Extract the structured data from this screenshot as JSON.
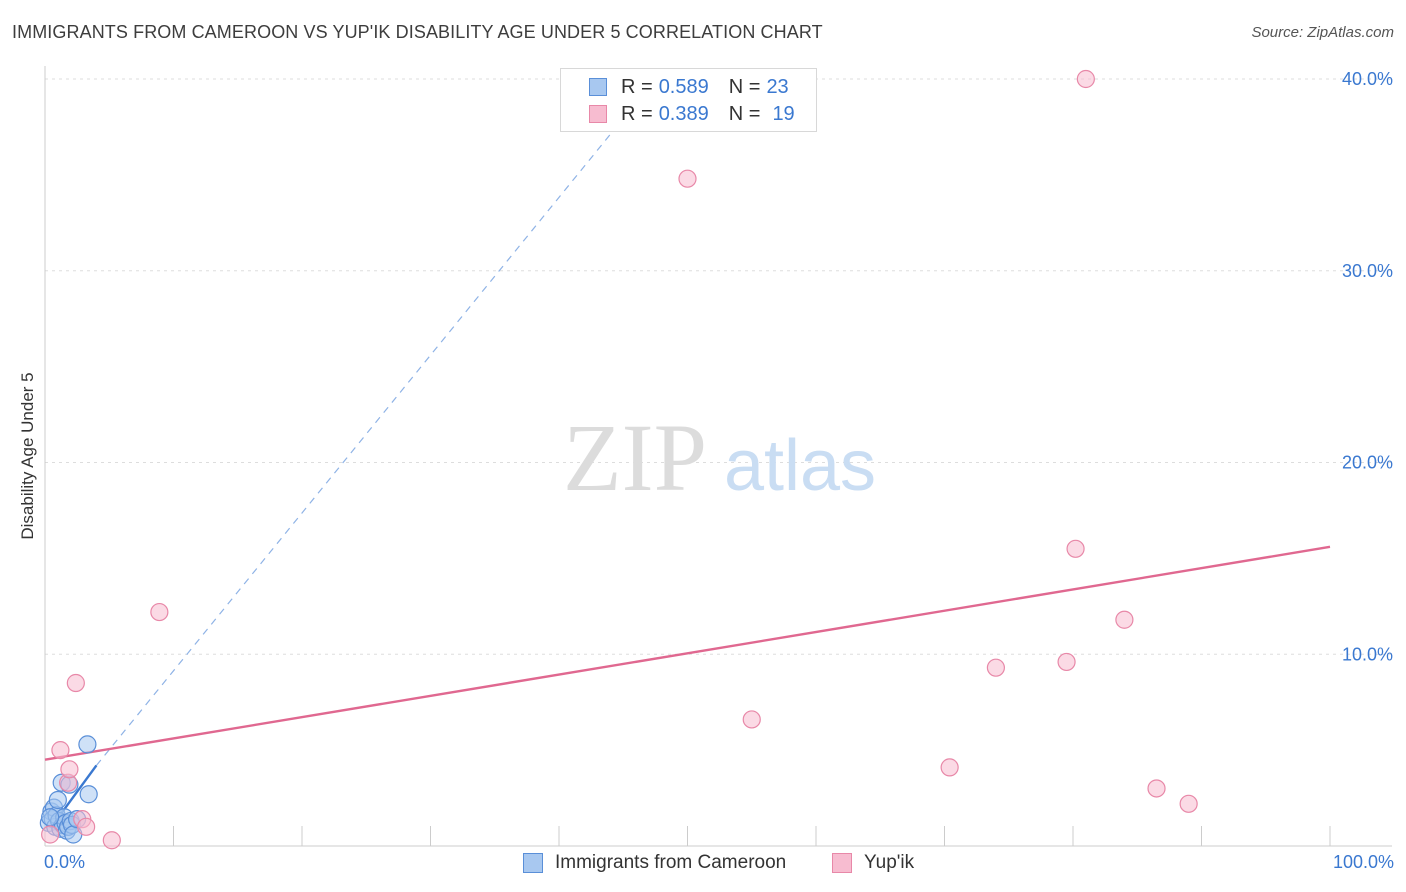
{
  "header": {
    "title": "IMMIGRANTS FROM CAMEROON VS YUP'IK DISABILITY AGE UNDER 5 CORRELATION CHART",
    "source": "Source: ZipAtlas.com"
  },
  "watermark": {
    "zip": "ZIP",
    "atlas": "atlas"
  },
  "colors": {
    "blue_fill": "#a8c8f0",
    "blue_stroke": "#5a8fd8",
    "blue_line": "#3a78d0",
    "pink_fill": "#f7bcd0",
    "pink_stroke": "#e888a8",
    "pink_line": "#e06890",
    "axis_text": "#3a78d0"
  },
  "legend": {
    "rows": [
      {
        "r_label": "R = ",
        "r_value": "0.589",
        "n_label": "N = ",
        "n_value": "23",
        "series": "blue"
      },
      {
        "r_label": "R = ",
        "r_value": "0.389",
        "n_label": "N = ",
        "n_value": "19",
        "series": "pink"
      }
    ]
  },
  "chart_data": {
    "type": "scatter",
    "title": "IMMIGRANTS FROM CAMEROON VS YUP'IK DISABILITY AGE UNDER 5 CORRELATION CHART",
    "xlabel": "",
    "ylabel": "Disability Age Under 5",
    "xlim": [
      0,
      100
    ],
    "ylim": [
      0,
      40
    ],
    "x_tick_labels": [
      "0.0%",
      "100.0%"
    ],
    "y_ticks": [
      10,
      20,
      30,
      40
    ],
    "y_tick_labels": [
      "10.0%",
      "20.0%",
      "30.0%",
      "40.0%"
    ],
    "grid": true,
    "series": [
      {
        "name": "Immigrants from Cameroon",
        "color": "blue",
        "points": [
          [
            0.3,
            1.2
          ],
          [
            0.5,
            1.8
          ],
          [
            0.6,
            1.4
          ],
          [
            0.7,
            2.0
          ],
          [
            0.8,
            1.0
          ],
          [
            0.9,
            1.6
          ],
          [
            1.0,
            2.4
          ],
          [
            1.1,
            1.3
          ],
          [
            1.2,
            0.9
          ],
          [
            1.3,
            3.3
          ],
          [
            1.4,
            1.1
          ],
          [
            1.5,
            1.5
          ],
          [
            1.6,
            1.2
          ],
          [
            1.7,
            0.8
          ],
          [
            1.8,
            1.0
          ],
          [
            1.9,
            3.2
          ],
          [
            2.0,
            1.3
          ],
          [
            2.1,
            1.1
          ],
          [
            2.2,
            0.6
          ],
          [
            2.5,
            1.4
          ],
          [
            0.4,
            1.5
          ],
          [
            3.3,
            5.3
          ],
          [
            3.4,
            2.7
          ]
        ],
        "trend": {
          "x": [
            0.5,
            4.0
          ],
          "y": [
            1.0,
            4.2
          ],
          "style": "solid"
        },
        "trend_extension": {
          "x": [
            4.0,
            47.5
          ],
          "y": [
            4.2,
            40.0
          ],
          "style": "dashed"
        }
      },
      {
        "name": "Yup'ik",
        "color": "pink",
        "points": [
          [
            0.4,
            0.6
          ],
          [
            1.2,
            5.0
          ],
          [
            1.8,
            3.3
          ],
          [
            1.9,
            4.0
          ],
          [
            2.4,
            8.5
          ],
          [
            2.9,
            1.4
          ],
          [
            3.2,
            1.0
          ],
          [
            5.2,
            0.3
          ],
          [
            8.9,
            12.2
          ],
          [
            50.0,
            34.8
          ],
          [
            55.0,
            6.6
          ],
          [
            70.4,
            4.1
          ],
          [
            74.0,
            9.3
          ],
          [
            79.5,
            9.6
          ],
          [
            80.2,
            15.5
          ],
          [
            81.0,
            40.0
          ],
          [
            84.0,
            11.8
          ],
          [
            86.5,
            3.0
          ],
          [
            89.0,
            2.2
          ]
        ],
        "trend": {
          "x": [
            0,
            100
          ],
          "y": [
            4.5,
            15.6
          ],
          "style": "solid"
        }
      }
    ]
  },
  "bottom_legend": {
    "items": [
      {
        "label": "Immigrants from Cameroon",
        "series": "blue"
      },
      {
        "label": "Yup'ik",
        "series": "pink"
      }
    ]
  }
}
